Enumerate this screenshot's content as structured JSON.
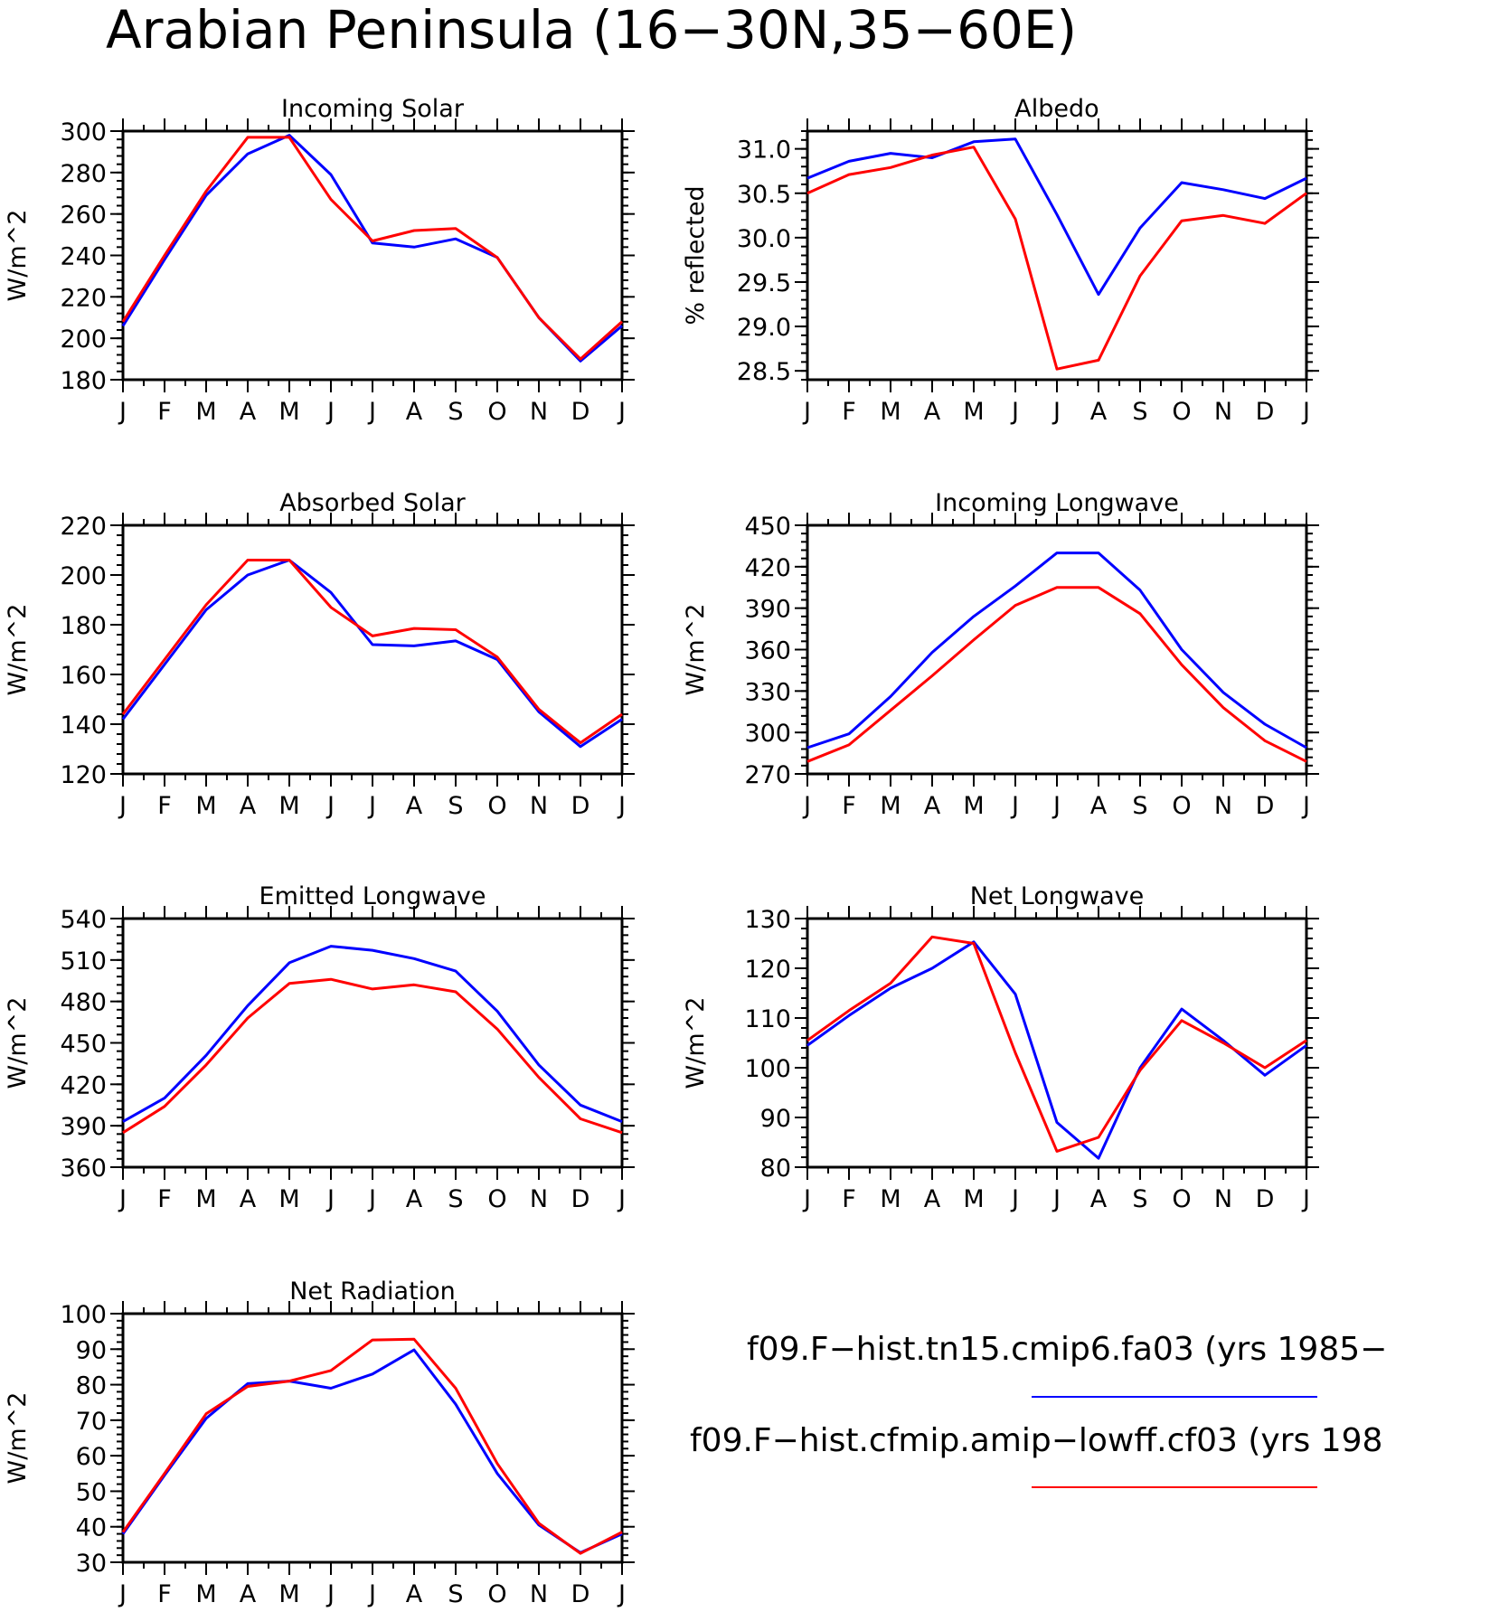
{
  "figure_title": "Arabian Peninsula (16−30N,35−60E)",
  "colors": {
    "series_1": "#0000ff",
    "series_2": "#ff0000"
  },
  "legend": {
    "entries": [
      {
        "label": "f09.F−hist.tn15.cmip6.fa03 (yrs 1985−",
        "color": "#0000ff"
      },
      {
        "label": "f09.F−hist.cfmip.amip−lowff.cf03 (yrs 198",
        "color": "#ff0000"
      }
    ]
  },
  "chart_data": [
    {
      "type": "line",
      "title": "Incoming Solar",
      "ylabel": "W/m^2",
      "categories": [
        "J",
        "F",
        "M",
        "A",
        "M",
        "J",
        "J",
        "A",
        "S",
        "O",
        "N",
        "D",
        "J"
      ],
      "ylim": [
        180,
        300
      ],
      "yticks": [
        180,
        200,
        220,
        240,
        260,
        280,
        300
      ],
      "ytick_labels": [
        "180",
        "200",
        "220",
        "240",
        "260",
        "280",
        "300"
      ],
      "series": [
        {
          "values": [
            206,
            238,
            269,
            289,
            298,
            279,
            246,
            244,
            248,
            239,
            210,
            189,
            206
          ]
        },
        {
          "values": [
            208,
            240,
            271,
            297,
            297,
            267,
            247,
            252,
            253,
            239,
            210,
            190,
            208
          ]
        }
      ]
    },
    {
      "type": "line",
      "title": "Albedo",
      "ylabel": "% reflected",
      "categories": [
        "J",
        "F",
        "M",
        "A",
        "M",
        "J",
        "J",
        "A",
        "S",
        "O",
        "N",
        "D",
        "J"
      ],
      "ylim": [
        28.4,
        31.2
      ],
      "yticks": [
        28.5,
        29.0,
        29.5,
        30.0,
        30.5,
        31.0
      ],
      "ytick_labels": [
        "28.5",
        "29.0",
        "29.5",
        "30.0",
        "30.5",
        "31.0"
      ],
      "series": [
        {
          "values": [
            30.67,
            30.86,
            30.95,
            30.9,
            31.08,
            31.11,
            30.26,
            29.36,
            30.11,
            30.62,
            30.54,
            30.44,
            30.67
          ]
        },
        {
          "values": [
            30.5,
            30.71,
            30.79,
            30.93,
            31.02,
            30.21,
            28.52,
            28.62,
            29.57,
            30.19,
            30.25,
            30.16,
            30.5
          ]
        }
      ]
    },
    {
      "type": "line",
      "title": "Absorbed Solar",
      "ylabel": "W/m^2",
      "categories": [
        "J",
        "F",
        "M",
        "A",
        "M",
        "J",
        "J",
        "A",
        "S",
        "O",
        "N",
        "D",
        "J"
      ],
      "ylim": [
        120,
        220
      ],
      "yticks": [
        120,
        140,
        160,
        180,
        200,
        220
      ],
      "ytick_labels": [
        "120",
        "140",
        "160",
        "180",
        "200",
        "220"
      ],
      "series": [
        {
          "values": [
            142,
            164,
            186,
            200,
            206,
            193,
            172,
            171.5,
            173.5,
            166,
            145,
            131,
            142
          ]
        },
        {
          "values": [
            144,
            166,
            188,
            206,
            206,
            187,
            175.5,
            178.5,
            178,
            167,
            146,
            132.5,
            144
          ]
        }
      ]
    },
    {
      "type": "line",
      "title": "Incoming Longwave",
      "ylabel": "W/m^2",
      "categories": [
        "J",
        "F",
        "M",
        "A",
        "M",
        "J",
        "J",
        "A",
        "S",
        "O",
        "N",
        "D",
        "J"
      ],
      "ylim": [
        270,
        450
      ],
      "yticks": [
        270,
        300,
        330,
        360,
        390,
        420,
        450
      ],
      "ytick_labels": [
        "270",
        "300",
        "330",
        "360",
        "390",
        "420",
        "450"
      ],
      "series": [
        {
          "values": [
            289,
            299,
            326,
            358,
            384,
            406,
            430,
            430,
            403,
            360,
            329,
            306,
            289
          ]
        },
        {
          "values": [
            279,
            291,
            316,
            341,
            367,
            392,
            405,
            405,
            386,
            349,
            318,
            294,
            279
          ]
        }
      ]
    },
    {
      "type": "line",
      "title": "Emitted Longwave",
      "ylabel": "W/m^2",
      "categories": [
        "J",
        "F",
        "M",
        "A",
        "M",
        "J",
        "J",
        "A",
        "S",
        "O",
        "N",
        "D",
        "J"
      ],
      "ylim": [
        360,
        540
      ],
      "yticks": [
        360,
        390,
        420,
        450,
        480,
        510,
        540
      ],
      "ytick_labels": [
        "360",
        "390",
        "420",
        "450",
        "480",
        "510",
        "540"
      ],
      "series": [
        {
          "values": [
            393,
            410,
            441,
            477,
            508,
            520,
            517,
            511,
            502,
            473,
            434,
            405,
            393
          ]
        },
        {
          "values": [
            385,
            404,
            434,
            468,
            493,
            496,
            489,
            492,
            487,
            460,
            425,
            395,
            385
          ]
        }
      ]
    },
    {
      "type": "line",
      "title": "Net Longwave",
      "ylabel": "W/m^2",
      "categories": [
        "J",
        "F",
        "M",
        "A",
        "M",
        "J",
        "J",
        "A",
        "S",
        "O",
        "N",
        "D",
        "J"
      ],
      "ylim": [
        80,
        130
      ],
      "yticks": [
        80,
        90,
        100,
        110,
        120,
        130
      ],
      "ytick_labels": [
        "80",
        "90",
        "100",
        "110",
        "120",
        "130"
      ],
      "series": [
        {
          "values": [
            104.5,
            110.5,
            116,
            120,
            125.3,
            114.8,
            89,
            81.8,
            100,
            111.8,
            105.5,
            98.5,
            104.5
          ]
        },
        {
          "values": [
            105.5,
            111.5,
            117,
            126.3,
            125,
            103,
            83.2,
            86,
            99.5,
            109.5,
            105,
            100,
            105.5
          ]
        }
      ]
    },
    {
      "type": "line",
      "title": "Net Radiation",
      "ylabel": "W/m^2",
      "categories": [
        "J",
        "F",
        "M",
        "A",
        "M",
        "J",
        "J",
        "A",
        "S",
        "O",
        "N",
        "D",
        "J"
      ],
      "ylim": [
        30,
        100
      ],
      "yticks": [
        30,
        40,
        50,
        60,
        70,
        80,
        90,
        100
      ],
      "ytick_labels": [
        "30",
        "40",
        "50",
        "60",
        "70",
        "80",
        "90",
        "100"
      ],
      "series": [
        {
          "values": [
            38,
            54.5,
            70.5,
            80.3,
            81,
            79,
            83,
            89.8,
            74.5,
            55,
            40.5,
            32.7,
            38
          ]
        },
        {
          "values": [
            38.5,
            55,
            71.8,
            79.5,
            81,
            84,
            92.6,
            92.8,
            79,
            57.8,
            41,
            32.5,
            38.5
          ]
        }
      ]
    }
  ]
}
